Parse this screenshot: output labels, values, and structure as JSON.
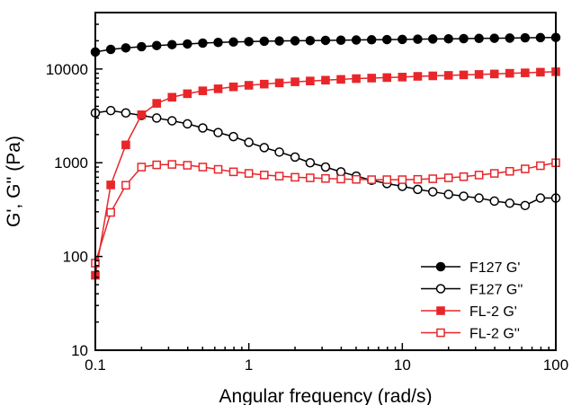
{
  "chart_data": {
    "type": "line",
    "title": "",
    "xlabel": "Angular frequency (rad/s)",
    "ylabel": "G', G'' (Pa)",
    "x_scale": "log",
    "y_scale": "log",
    "xlim": [
      0.1,
      100
    ],
    "ylim": [
      10,
      40000
    ],
    "x_ticks": [
      0.1,
      1,
      10,
      100
    ],
    "x_tick_labels": [
      "0.1",
      "1",
      "10",
      "100"
    ],
    "y_ticks": [
      10,
      100,
      1000,
      10000
    ],
    "y_tick_labels": [
      "10",
      "100",
      "1000",
      "10000"
    ],
    "grid": false,
    "legend_position": "bottom-right",
    "x": [
      0.1,
      0.126,
      0.158,
      0.2,
      0.251,
      0.316,
      0.398,
      0.501,
      0.631,
      0.794,
      1,
      1.26,
      1.58,
      2,
      2.51,
      3.16,
      3.98,
      5.01,
      6.31,
      7.94,
      10,
      12.6,
      15.8,
      20,
      25.1,
      31.6,
      39.8,
      50.1,
      63.1,
      79.4,
      100
    ],
    "series": [
      {
        "name": "F127 G'",
        "color": "#000000",
        "marker": "filled-circle",
        "values": [
          15200,
          16200,
          16800,
          17300,
          17800,
          18200,
          18500,
          18900,
          19200,
          19400,
          19600,
          19800,
          19900,
          20000,
          20100,
          20200,
          20300,
          20400,
          20500,
          20600,
          20700,
          20800,
          20900,
          21000,
          21100,
          21200,
          21300,
          21400,
          21500,
          21600,
          21700
        ]
      },
      {
        "name": "F127 G''",
        "color": "#000000",
        "marker": "open-circle",
        "values": [
          3400,
          3600,
          3400,
          3200,
          3000,
          2800,
          2600,
          2350,
          2100,
          1900,
          1650,
          1450,
          1300,
          1150,
          1000,
          900,
          800,
          720,
          650,
          600,
          560,
          520,
          490,
          460,
          440,
          420,
          390,
          370,
          350,
          420,
          420
        ]
      },
      {
        "name": "FL-2  G'",
        "color": "#e8262a",
        "marker": "filled-square",
        "values": [
          63,
          580,
          1550,
          3250,
          4300,
          5000,
          5450,
          5850,
          6150,
          6450,
          6700,
          6900,
          7100,
          7300,
          7450,
          7600,
          7750,
          7900,
          8000,
          8100,
          8200,
          8350,
          8450,
          8550,
          8650,
          8750,
          8850,
          9000,
          9100,
          9250,
          9350
        ]
      },
      {
        "name": "FL-2  G''",
        "color": "#e8262a",
        "marker": "open-square",
        "values": [
          85,
          295,
          575,
          900,
          950,
          960,
          940,
          900,
          850,
          800,
          770,
          740,
          720,
          700,
          690,
          680,
          670,
          665,
          660,
          660,
          660,
          665,
          675,
          690,
          710,
          740,
          770,
          810,
          860,
          930,
          1000
        ]
      }
    ]
  }
}
